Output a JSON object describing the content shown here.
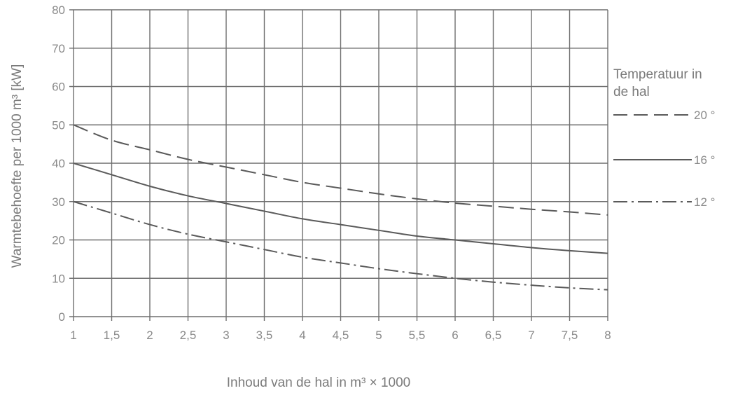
{
  "chart_data": {
    "type": "line",
    "xlabel": "Inhoud van de hal in m³ × 1000",
    "ylabel": "Warmtebehoefte per 1000 m³ [kW]",
    "xlim": [
      1,
      8
    ],
    "ylim": [
      0,
      80
    ],
    "x_ticks": [
      "1",
      "1,5",
      "2",
      "2,5",
      "3",
      "3,5",
      "4",
      "4,5",
      "5",
      "5,5",
      "6",
      "6,5",
      "7",
      "7,5",
      "8"
    ],
    "y_ticks": [
      "0",
      "10",
      "20",
      "30",
      "40",
      "50",
      "60",
      "70",
      "80"
    ],
    "grid": true,
    "legend_title": "Temperatuur in de hal",
    "legend_title_lines": [
      "Temperatuur in",
      "de hal"
    ],
    "legend_position": "right",
    "x": [
      1,
      1.5,
      2,
      2.5,
      3,
      3.5,
      4,
      4.5,
      5,
      5.5,
      6,
      6.5,
      7,
      7.5,
      8
    ],
    "series": [
      {
        "name": "20 °",
        "style": "dashed",
        "values": [
          50,
          46,
          43.5,
          41,
          39,
          37,
          35,
          33.5,
          32,
          30.7,
          29.6,
          28.8,
          28,
          27.3,
          26.5
        ]
      },
      {
        "name": "16 °",
        "style": "solid",
        "values": [
          40,
          37,
          34,
          31.5,
          29.5,
          27.5,
          25.5,
          24,
          22.5,
          21,
          20,
          19,
          18,
          17.2,
          16.5
        ]
      },
      {
        "name": "12 °",
        "style": "dash-dot",
        "values": [
          30,
          27,
          24,
          21.5,
          19.5,
          17.5,
          15.5,
          14,
          12.5,
          11.2,
          10,
          9,
          8.2,
          7.5,
          7
        ]
      }
    ],
    "colors": {
      "grid": "#6f6f6f",
      "curve": "#5a5a5a",
      "text": "#7a7a7a"
    }
  }
}
